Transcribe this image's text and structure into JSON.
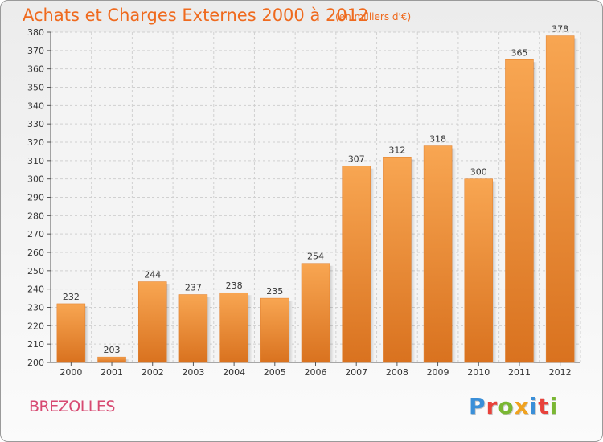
{
  "header": {
    "title": "Achats et Charges Externes 2000 à 2012",
    "subtitle": "(en milliers d'€)"
  },
  "footer": {
    "commune": "BREZOLLES",
    "logo_text": "Proxiti",
    "logo_colors": [
      "#3a8fd8",
      "#e8423b",
      "#7ab733",
      "#f0a21f",
      "#3a8fd8",
      "#e8423b",
      "#7ab733"
    ]
  },
  "colors": {
    "bar_light": "#f8a652",
    "bar_dark": "#d9721f",
    "grid": "#d0d0d0",
    "title": "#ef6a1e",
    "commune": "#d74a72"
  },
  "chart_data": {
    "type": "bar",
    "title": "Achats et Charges Externes 2000 à 2012",
    "subtitle": "(en milliers d'€)",
    "xlabel": "",
    "ylabel": "",
    "categories": [
      "2000",
      "2001",
      "2002",
      "2003",
      "2004",
      "2005",
      "2006",
      "2007",
      "2008",
      "2009",
      "2010",
      "2011",
      "2012"
    ],
    "values": [
      232,
      203,
      244,
      237,
      238,
      235,
      254,
      307,
      312,
      318,
      300,
      365,
      378
    ],
    "ylim": [
      200,
      380
    ],
    "ytick_step": 10,
    "grid": true,
    "data_labels": true
  }
}
